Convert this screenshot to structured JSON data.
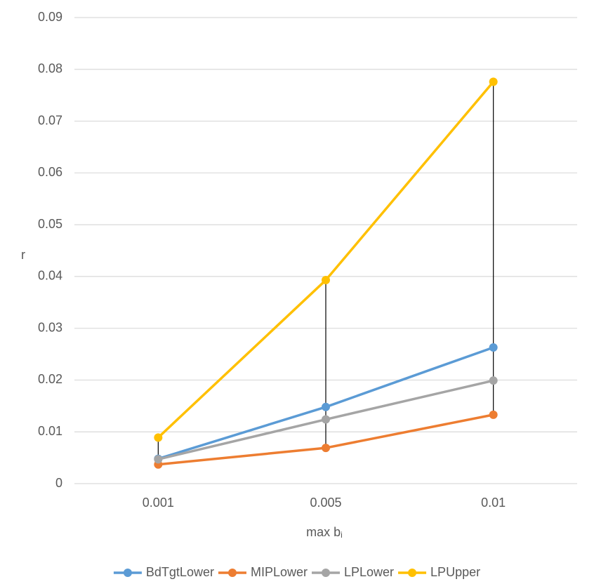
{
  "chart_data": {
    "type": "line",
    "title": "",
    "xlabel": "max b",
    "xlabel_subscript": "i",
    "ylabel": "r",
    "categories": [
      "0.001",
      "0.005",
      "0.01"
    ],
    "ylim": [
      0,
      0.09
    ],
    "yticks": [
      0,
      0.01,
      0.02,
      0.03,
      0.04,
      0.05,
      0.06,
      0.07,
      0.08,
      0.09
    ],
    "ytick_labels": [
      "0",
      "0.01",
      "0.02",
      "0.03",
      "0.04",
      "0.05",
      "0.06",
      "0.07",
      "0.08",
      "0.09"
    ],
    "grid": true,
    "legend_position": "bottom",
    "high_low_lines": true,
    "series": [
      {
        "name": "BdTgtLower",
        "color": "#5b9bd5",
        "values": [
          0.0048,
          0.0148,
          0.0263
        ]
      },
      {
        "name": "MIPLower",
        "color": "#ed7d31",
        "values": [
          0.0037,
          0.0069,
          0.0133
        ]
      },
      {
        "name": "LPLower",
        "color": "#a5a5a5",
        "values": [
          0.0047,
          0.0124,
          0.0199
        ]
      },
      {
        "name": "LPUpper",
        "color": "#ffc000",
        "values": [
          0.0089,
          0.0393,
          0.0776
        ]
      }
    ]
  }
}
